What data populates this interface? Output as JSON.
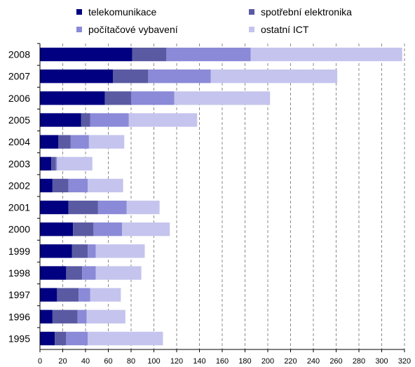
{
  "chart_data": {
    "type": "bar",
    "orientation": "horizontal",
    "stacked": true,
    "categories": [
      "2008",
      "2007",
      "2006",
      "2005",
      "2004",
      "2003",
      "2002",
      "2001",
      "2000",
      "1999",
      "1998",
      "1997",
      "1996",
      "1995"
    ],
    "series": [
      {
        "name": "telekomunikace",
        "color": "#000080",
        "values": [
          81,
          64,
          57,
          36,
          16,
          10,
          11,
          25,
          29,
          28,
          23,
          15,
          11,
          13
        ]
      },
      {
        "name": "spotřební elektronika",
        "color": "#5a5aa3",
        "values": [
          30,
          31,
          23,
          8,
          11,
          4,
          14,
          26,
          18,
          14,
          14,
          19,
          22,
          10
        ]
      },
      {
        "name": "počítačové vybavení",
        "color": "#8a8ad8",
        "values": [
          74,
          55,
          38,
          34,
          16,
          1,
          17,
          25,
          25,
          7,
          12,
          10,
          8,
          19
        ]
      },
      {
        "name": "ostatní ICT",
        "color": "#c4c4ee",
        "values": [
          133,
          111,
          84,
          60,
          31,
          31,
          31,
          29,
          42,
          43,
          40,
          27,
          34,
          66
        ]
      }
    ],
    "xticks": [
      "0",
      "20",
      "40",
      "60",
      "80",
      "100",
      "120",
      "140",
      "160",
      "180",
      "200",
      "220",
      "240",
      "260",
      "280",
      "300",
      "320"
    ],
    "xlim": [
      0,
      320
    ],
    "grid": "vertical dashed",
    "legend_position": "top"
  }
}
